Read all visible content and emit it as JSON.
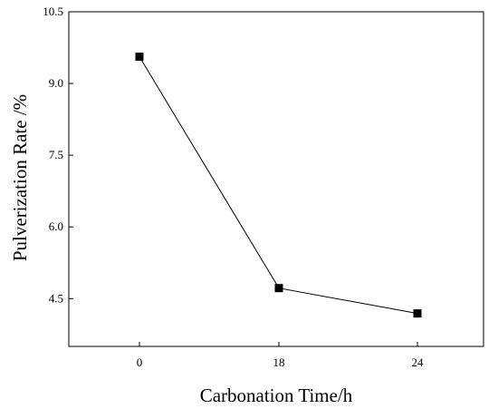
{
  "chart_data": {
    "type": "line",
    "title": "",
    "xlabel": "Carbonation Time/h",
    "ylabel": "Pulverization Rate /%",
    "categories": [
      "0",
      "18",
      "24"
    ],
    "series": [
      {
        "values": [
          9.56,
          4.72,
          4.19
        ]
      }
    ],
    "ylim": [
      3.5,
      10.5
    ],
    "yticks": [
      "4.5",
      "6.0",
      "7.5",
      "9.0",
      "10.5"
    ],
    "grid": false,
    "legend": "none",
    "colors": {
      "line": "#000000",
      "marker": "#000000"
    }
  }
}
